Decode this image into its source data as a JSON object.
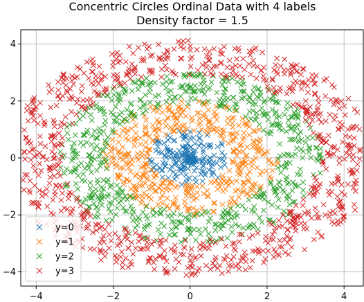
{
  "chart_data": {
    "type": "scatter",
    "title": "Concentric Circles Ordinal Data with 4 labels",
    "subtitle": "Density factor = 1.5",
    "xlabel": "",
    "ylabel": "",
    "xlim": [
      -4.4,
      4.5
    ],
    "ylim": [
      -4.5,
      4.5
    ],
    "xticks": [
      -4,
      -2,
      0,
      2,
      4
    ],
    "yticks": [
      -4,
      -2,
      0,
      2,
      4
    ],
    "xtick_labels": [
      "−4",
      "−2",
      "0",
      "2",
      "4"
    ],
    "ytick_labels": [
      "−4",
      "−2",
      "0",
      "2",
      "4"
    ],
    "grid": true,
    "legend_position": "lower-left",
    "marker": "x",
    "series": [
      {
        "name": "y=0",
        "color": "#1f77b4",
        "r_min": 0.0,
        "r_max": 1.0,
        "count": 220,
        "x_stretch": 1.15
      },
      {
        "name": "y=1",
        "color": "#ff7f0e",
        "r_min": 0.95,
        "r_max": 2.0,
        "count": 450,
        "x_stretch": 1.15
      },
      {
        "name": "y=2",
        "color": "#2ca02c",
        "r_min": 1.9,
        "r_max": 3.0,
        "count": 650,
        "x_stretch": 1.15
      },
      {
        "name": "y=3",
        "color": "#d62728",
        "r_min": 2.9,
        "r_max": 4.15,
        "count": 900,
        "x_stretch": 1.15
      }
    ]
  }
}
